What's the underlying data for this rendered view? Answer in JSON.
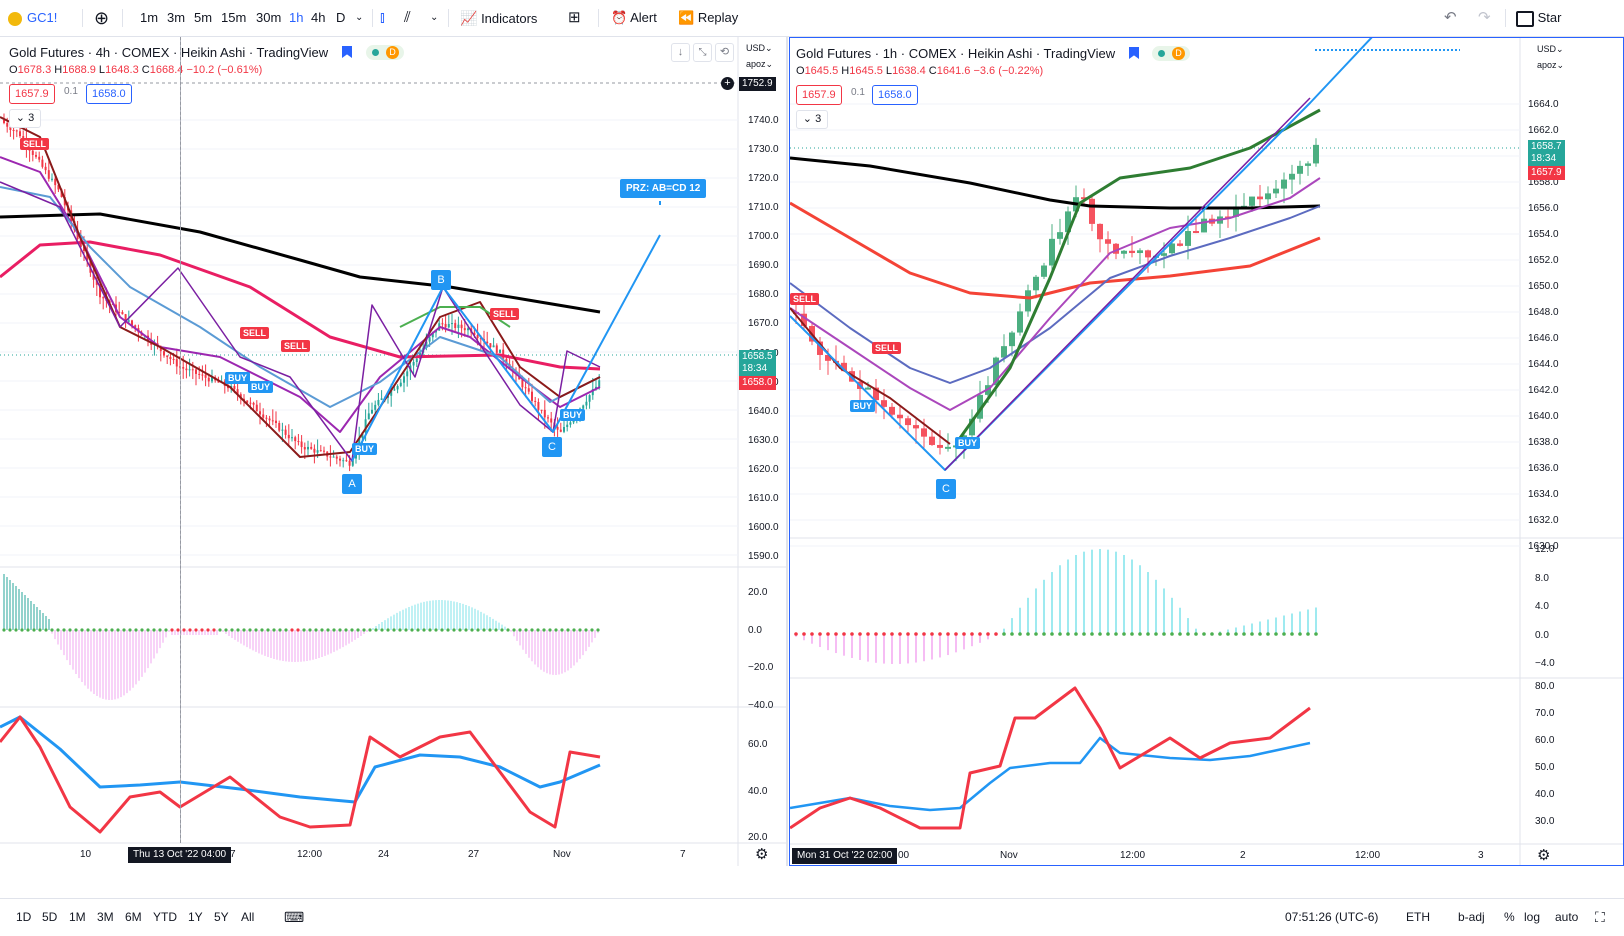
{
  "toolbar": {
    "symbol": "GC1!",
    "intervals": [
      "1m",
      "3m",
      "5m",
      "15m",
      "30m",
      "1h",
      "4h",
      "D"
    ],
    "active_interval": "1h",
    "indicators_label": "Indicators",
    "alert_label": "Alert",
    "replay_label": "Replay",
    "right_label": "Star"
  },
  "left_chart": {
    "title": "Gold Futures · 4h · COMEX · Heikin Ashi · TradingView",
    "ohlc": {
      "o": "1678.3",
      "h": "1688.9",
      "l": "1648.3",
      "c": "1668.4",
      "chg": "−10.2 (−0.61%)"
    },
    "bid": "1657.9",
    "spread": "0.1",
    "ask": "1658.0",
    "collapse_count": "3",
    "currency": "USD",
    "scale_mode": "apoz",
    "crosshair_price": "1752.9",
    "last_price": "1658.5",
    "countdown": "18:34",
    "bid_badge": "1658.0",
    "price_ticks": [
      "1740.0",
      "1730.0",
      "1720.0",
      "1710.0",
      "1700.0",
      "1690.0",
      "1680.0",
      "1670.0",
      "1660.0",
      "1650.0",
      "1640.0",
      "1630.0",
      "1620.0",
      "1610.0",
      "1600.0",
      "1590.0"
    ],
    "osc_ticks": [
      "20.0",
      "0.0",
      "−20.0",
      "−40.0"
    ],
    "rsi_ticks": [
      "60.0",
      "40.0",
      "20.0"
    ],
    "time_ticks": [
      "10",
      "7",
      "12:00",
      "24",
      "27",
      "Nov",
      "7"
    ],
    "crosshair_time": "Thu 13 Oct '22  04:00",
    "prz_label": "PRZ: AB=CD 12",
    "points": [
      "A",
      "B",
      "C"
    ],
    "signals": [
      "SELL",
      "SELL",
      "SELL",
      "SELL",
      "BUY",
      "BUY",
      "BUY",
      "BUY"
    ]
  },
  "right_chart": {
    "title": "Gold Futures · 1h · COMEX · Heikin Ashi · TradingView",
    "ohlc": {
      "o": "1645.5",
      "h": "1645.5",
      "l": "1638.4",
      "c": "1641.6",
      "chg": "−3.6 (−0.22%)"
    },
    "bid": "1657.9",
    "spread": "0.1",
    "ask": "1658.0",
    "collapse_count": "3",
    "currency": "USD",
    "scale_mode": "apoz",
    "last_price": "1658.7",
    "countdown": "18:34",
    "bid_badge": "1657.9",
    "price_ticks": [
      "1664.0",
      "1662.0",
      "1660.0",
      "1658.0",
      "1656.0",
      "1654.0",
      "1652.0",
      "1650.0",
      "1648.0",
      "1646.0",
      "1644.0",
      "1642.0",
      "1640.0",
      "1638.0",
      "1636.0",
      "1634.0",
      "1632.0",
      "1630.0"
    ],
    "osc_ticks": [
      "12.0",
      "8.0",
      "4.0",
      "0.0",
      "−4.0"
    ],
    "rsi_ticks": [
      "80.0",
      "70.0",
      "60.0",
      "50.0",
      "40.0",
      "30.0"
    ],
    "time_ticks": [
      "00",
      "Nov",
      "12:00",
      "2",
      "12:00",
      "3"
    ],
    "crosshair_time": "Mon 31 Oct '22  02:00",
    "points": [
      "C"
    ],
    "signals": [
      "SELL",
      "SELL",
      "BUY",
      "BUY"
    ]
  },
  "bottom": {
    "ranges": [
      "1D",
      "5D",
      "1M",
      "3M",
      "6M",
      "YTD",
      "1Y",
      "5Y",
      "All"
    ],
    "clock": "07:51:26 (UTC-6)",
    "session": "ETH",
    "adj": "b-adj",
    "pct": "%",
    "log": "log",
    "auto": "auto"
  },
  "colors": {
    "up": "#26a69a",
    "down": "#f23645",
    "blue": "#2196f3",
    "accent": "#2962ff"
  }
}
